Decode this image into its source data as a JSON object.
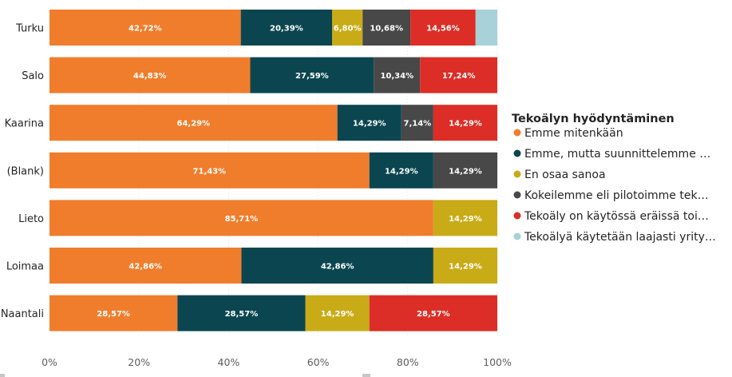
{
  "chart_data": {
    "type": "bar",
    "orientation": "horizontal",
    "stacked": "100%",
    "categories": [
      "Turku",
      "Salo",
      "Kaarina",
      "(Blank)",
      "Lieto",
      "Loimaa",
      "Naantali"
    ],
    "legend_title": "Tekoälyn hyödyntäminen",
    "legend_position": "right",
    "series": [
      {
        "name": "Emme mitenkään",
        "legend_label": "Emme mitenkään",
        "color": "#f07d2c",
        "values": [
          42.72,
          44.83,
          64.29,
          71.43,
          85.71,
          42.86,
          28.57
        ],
        "labels": [
          "42,72%",
          "44,83%",
          "64,29%",
          "71,43%",
          "85,71%",
          "42,86%",
          "28,57%"
        ]
      },
      {
        "name": "Emme, mutta suunnittelemme …",
        "legend_label": "Emme, mutta suunnittelemme …",
        "color": "#0b4650",
        "values": [
          20.39,
          27.59,
          14.29,
          14.29,
          0,
          42.86,
          28.57
        ],
        "labels": [
          "20,39%",
          "27,59%",
          "14,29%",
          "14,29%",
          "",
          "42,86%",
          "28,57%"
        ]
      },
      {
        "name": "En osaa sanoa",
        "legend_label": "En osaa sanoa",
        "color": "#c9ab17",
        "values": [
          6.8,
          0,
          0,
          0,
          14.29,
          14.29,
          14.29
        ],
        "labels": [
          "6,80%",
          "",
          "",
          "",
          "14,29%",
          "14,29%",
          "14,29%"
        ]
      },
      {
        "name": "Kokeilemme eli pilotoimme tek…",
        "legend_label": "Kokeilemme eli pilotoimme tek…",
        "color": "#484848",
        "values": [
          10.68,
          10.34,
          7.14,
          14.29,
          0,
          0,
          0
        ],
        "labels": [
          "10,68%",
          "10,34%",
          "7,14%",
          "14,29%",
          "",
          "",
          ""
        ]
      },
      {
        "name": "Tekoäly on käytössä eräissä toi…",
        "legend_label": "Tekoäly on käytössä eräissä toi…",
        "color": "#dc2e26",
        "values": [
          14.56,
          17.24,
          14.29,
          0,
          0,
          0,
          28.57
        ],
        "labels": [
          "14,56%",
          "17,24%",
          "14,29%",
          "",
          "",
          "",
          "28,57%"
        ]
      },
      {
        "name": "Tekoälyä käytetään laajasti yrity…",
        "legend_label": "Tekoälyä käytetään laajasti yrity…",
        "color": "#a8d1d9",
        "values": [
          4.85,
          0,
          0,
          0,
          0,
          0,
          0
        ],
        "labels": [
          "",
          "",
          "",
          "",
          "",
          "",
          ""
        ]
      }
    ],
    "xlim": [
      0,
      100
    ],
    "x_ticks": [
      0,
      20,
      40,
      60,
      80,
      100
    ],
    "x_tick_labels": [
      "0%",
      "20%",
      "40%",
      "60%",
      "80%",
      "100%"
    ],
    "grid": true
  }
}
